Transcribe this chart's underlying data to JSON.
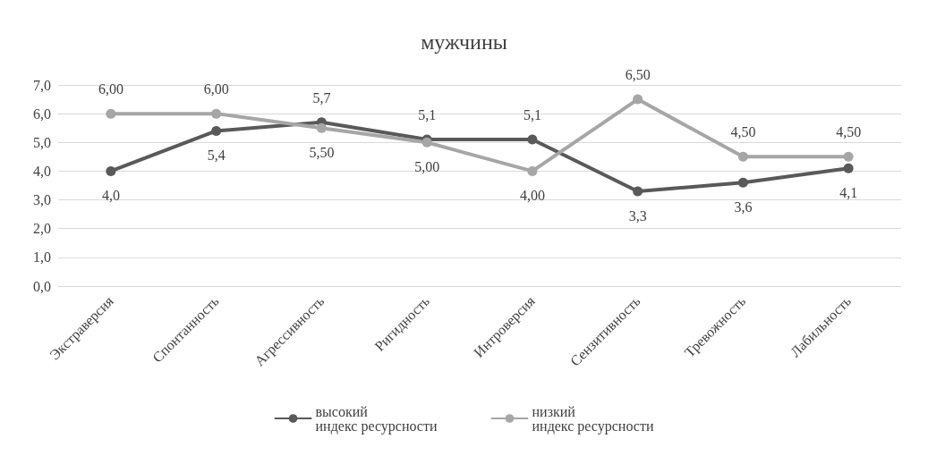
{
  "chart_data": {
    "type": "line",
    "title": "мужчины",
    "categories": [
      "Экстраверсия",
      "Спонтанность",
      "Агрессивность",
      "Ригидность",
      "Интроверсия",
      "Сензитивность",
      "Тревожность",
      "Лабильность"
    ],
    "series": [
      {
        "name": "высокий\nиндекс ресурсности",
        "color": "#595959",
        "values": [
          4.0,
          5.4,
          5.7,
          5.1,
          5.1,
          3.3,
          3.6,
          4.1
        ],
        "value_labels": [
          "4,0",
          "5,4",
          "5,7",
          "5,1",
          "5,1",
          "3,3",
          "3,6",
          "4,1"
        ]
      },
      {
        "name": "низкий\nиндекс ресурсности",
        "color": "#a6a6a6",
        "values": [
          6.0,
          6.0,
          5.5,
          5.0,
          4.0,
          6.5,
          4.5,
          4.5
        ],
        "value_labels": [
          "6,00",
          "6,00",
          "5,50",
          "5,00",
          "4,00",
          "6,50",
          "4,50",
          "4,50"
        ]
      }
    ],
    "ylim": [
      0,
      7
    ],
    "yticks": [
      {
        "value": 0,
        "label": "0,0"
      },
      {
        "value": 1,
        "label": "1,0"
      },
      {
        "value": 2,
        "label": "2,0"
      },
      {
        "value": 3,
        "label": "3,0"
      },
      {
        "value": 4,
        "label": "4,0"
      },
      {
        "value": 5,
        "label": "5,0"
      },
      {
        "value": 6,
        "label": "6,0"
      },
      {
        "value": 7,
        "label": "7,0"
      }
    ],
    "grid": "y",
    "legend": "bottom",
    "marker": "circle",
    "line_style": "solid"
  }
}
